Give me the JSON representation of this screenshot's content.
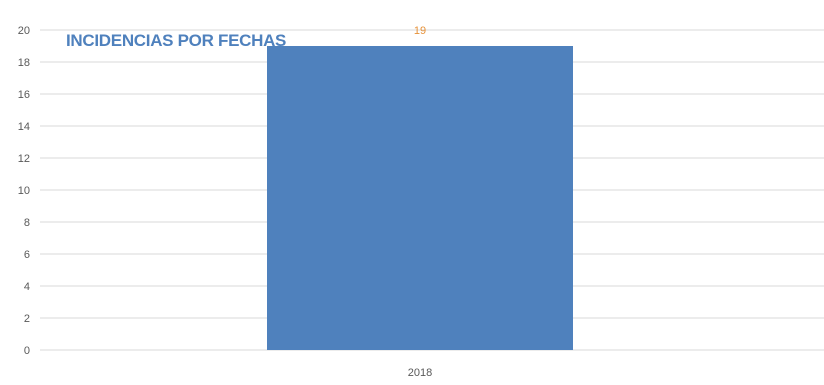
{
  "chart_data": {
    "type": "bar",
    "title": "INCIDENCIAS POR FECHAS",
    "categories": [
      "2018"
    ],
    "values": [
      19
    ],
    "data_labels": [
      "19"
    ],
    "xlabel": "",
    "ylabel": "",
    "ylim": [
      0,
      20
    ],
    "yticks": [
      "0",
      "2",
      "4",
      "6",
      "8",
      "10",
      "12",
      "14",
      "16",
      "18",
      "20"
    ],
    "grid": true,
    "legend": "none",
    "colors": {
      "bar": "#4F81BD",
      "title": "#4F81BD",
      "data_label": "#E69138",
      "grid": "#D9D9D9",
      "axis_text": "#595959"
    }
  }
}
